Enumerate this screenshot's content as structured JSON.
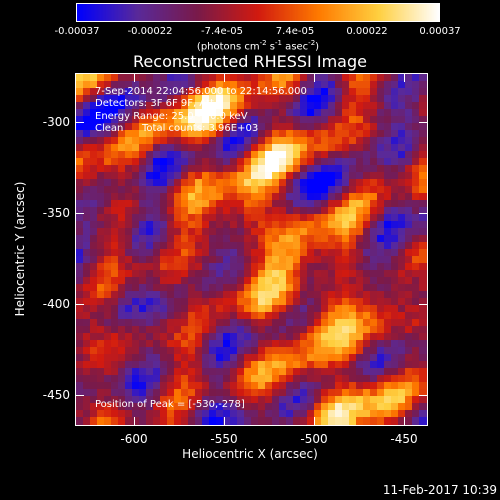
{
  "colorbar": {
    "tick_labels": [
      "-0.00037",
      "-0.00022",
      "-7.4e-05",
      "7.4e-05",
      "0.00022",
      "0.00037"
    ],
    "units_text": "(photons cm",
    "units_sup1": "-2",
    "units_mid": " s",
    "units_sup2": "-1",
    "units_end": " asec",
    "units_sup3": "-2",
    "units_close": ")"
  },
  "title": "Reconstructed RHESSI Image",
  "annotations": {
    "time_range": "7-Sep-2014 22:04:56.000 to 22:14:56.000",
    "detectors": "Detectors: 3F 6F 9F, Att 0",
    "energy_range": "Energy Range: 25.0 - 50.0 keV",
    "clean_label": "Clean",
    "total_counts": "Total counts: 3.96E+03",
    "peak_position": "Position of Peak = [-530,-278]"
  },
  "axes": {
    "xlabel": "Heliocentric X (arcsec)",
    "ylabel": "Heliocentric Y (arcsec)",
    "x_tick_labels": [
      "-600",
      "-550",
      "-500",
      "-450"
    ],
    "y_tick_labels": [
      "-300",
      "-350",
      "-400",
      "-450"
    ]
  },
  "footer": {
    "date_time": "11-Feb-2017 10:39"
  },
  "colors": {
    "background": "#000000",
    "colormap": [
      "#0000ff",
      "#5a2a9a",
      "#7a1a4a",
      "#d21b10",
      "#ff7a00",
      "#ffd040",
      "#ffffff"
    ]
  }
}
